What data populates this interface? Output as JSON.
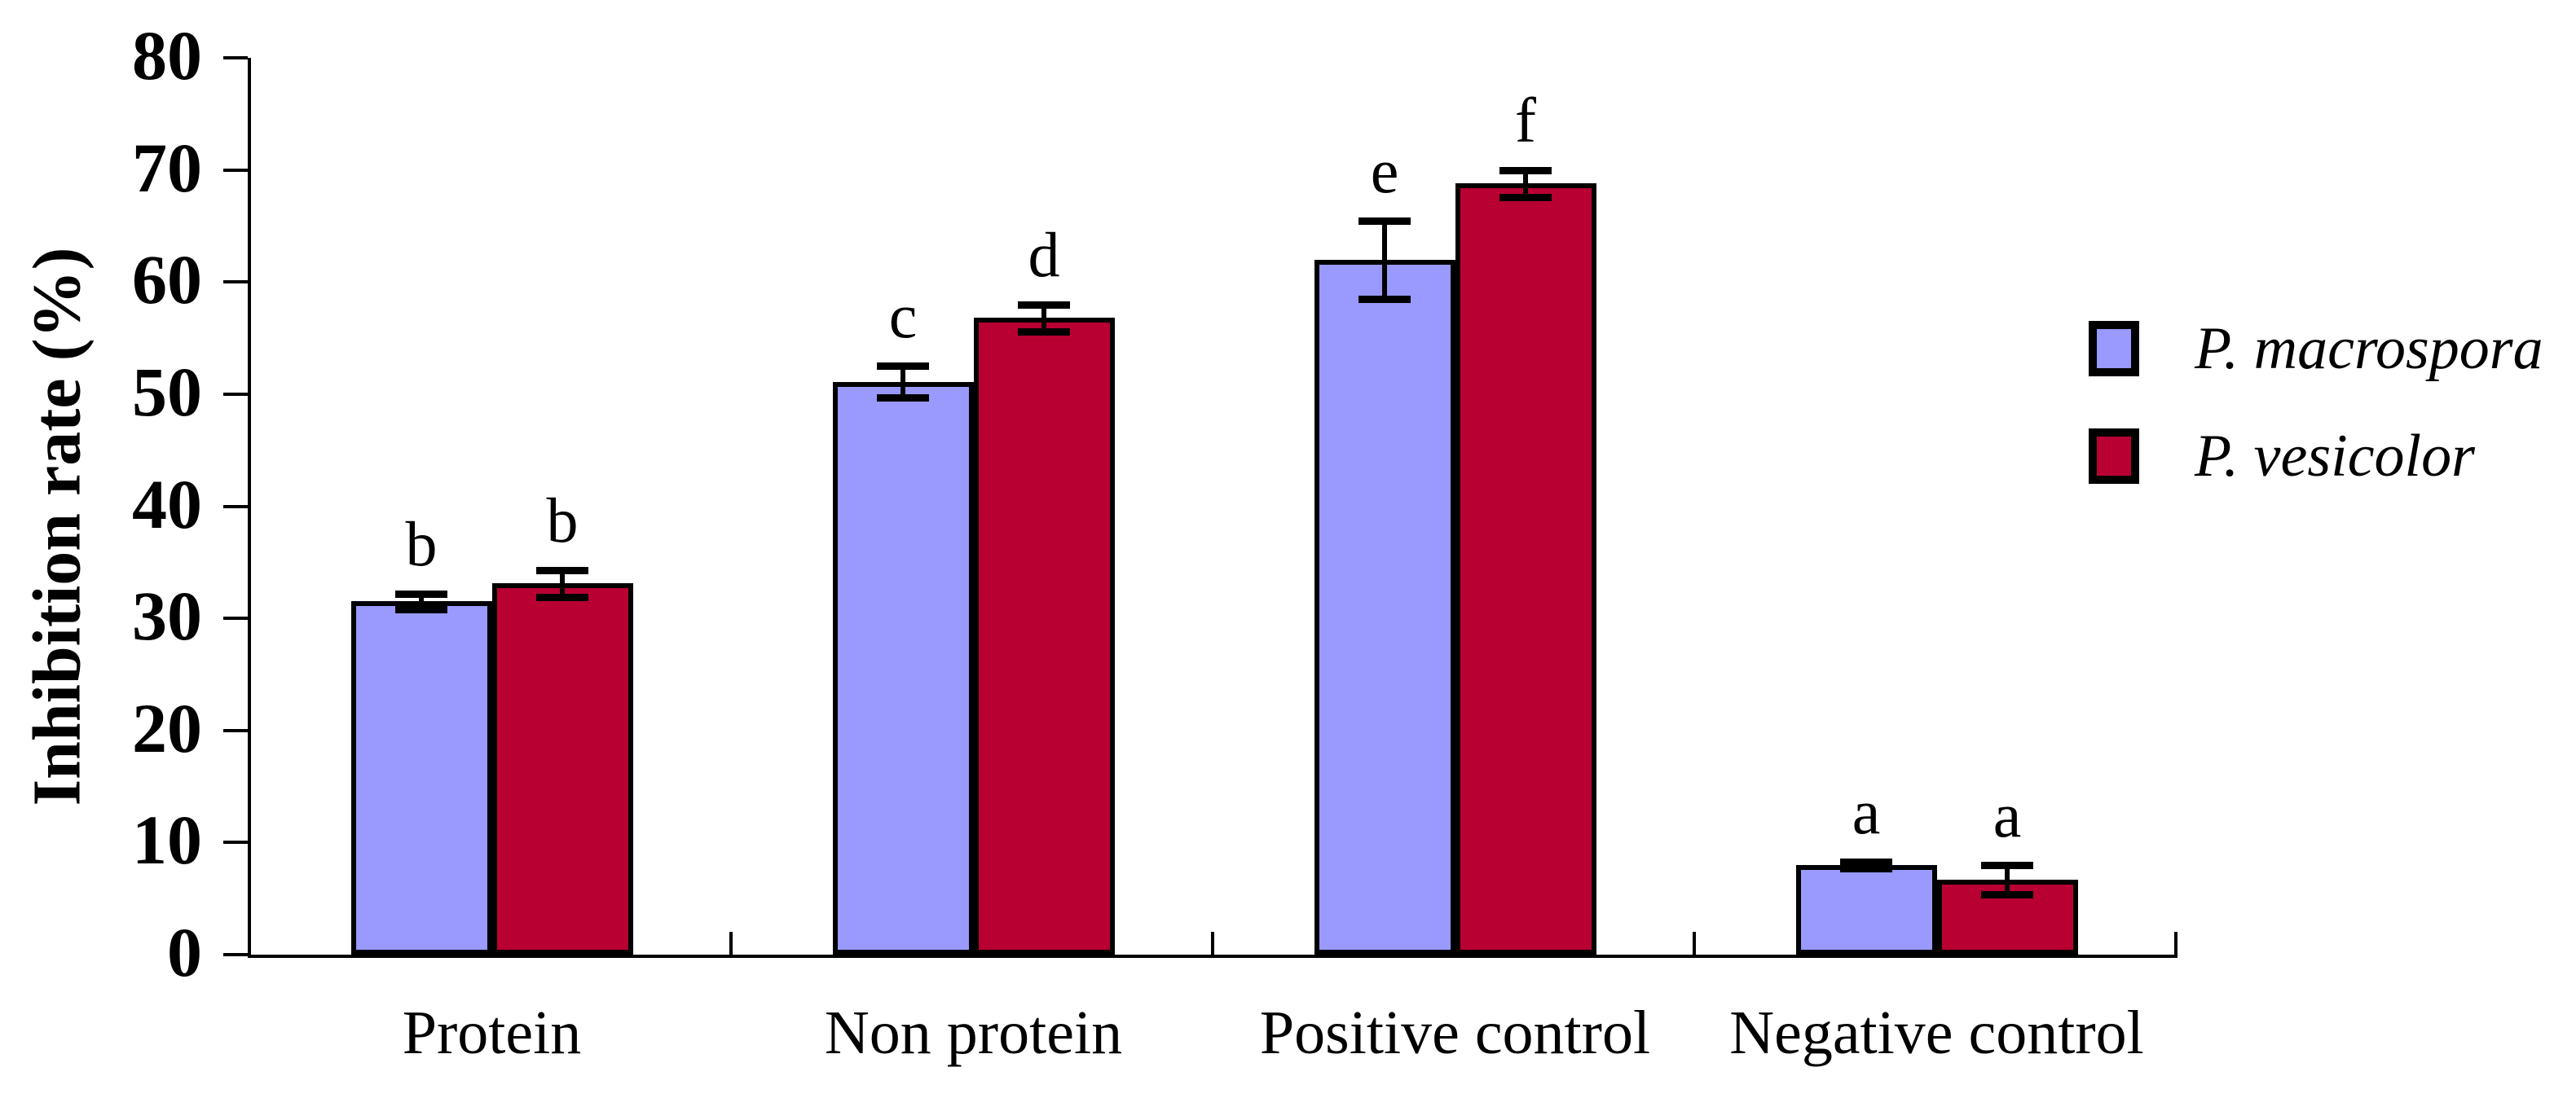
{
  "chart_data": {
    "type": "bar",
    "title": "",
    "xlabel": "",
    "ylabel": "Inhibition rate (%)",
    "ylim": [
      0,
      80
    ],
    "ytick_interval": 10,
    "ytick_labels": [
      "0",
      "10",
      "20",
      "30",
      "40",
      "50",
      "60",
      "70",
      "80"
    ],
    "grid": false,
    "legend_position": "right",
    "categories": [
      "Protein",
      "Non protein",
      "Positive control",
      "Negative control"
    ],
    "series": [
      {
        "name": "P. macrospora",
        "color": "#9999FE",
        "values": [
          31.5,
          51.1,
          62.0,
          8.0
        ],
        "errors": [
          0.7,
          1.4,
          3.5,
          0.3
        ],
        "sig_letters": [
          "b",
          "c",
          "e",
          "a"
        ]
      },
      {
        "name": "P. vesicolor",
        "color": "#B90033",
        "values": [
          33.1,
          56.8,
          68.8,
          6.7
        ],
        "errors": [
          1.2,
          1.2,
          1.2,
          1.3
        ],
        "sig_letters": [
          "b",
          "d",
          "f",
          "a"
        ]
      }
    ]
  },
  "legend": {
    "items": [
      {
        "label": "P. macrospora",
        "color": "#9999FE"
      },
      {
        "label": "P. vesicolor",
        "color": "#B90033"
      }
    ]
  }
}
